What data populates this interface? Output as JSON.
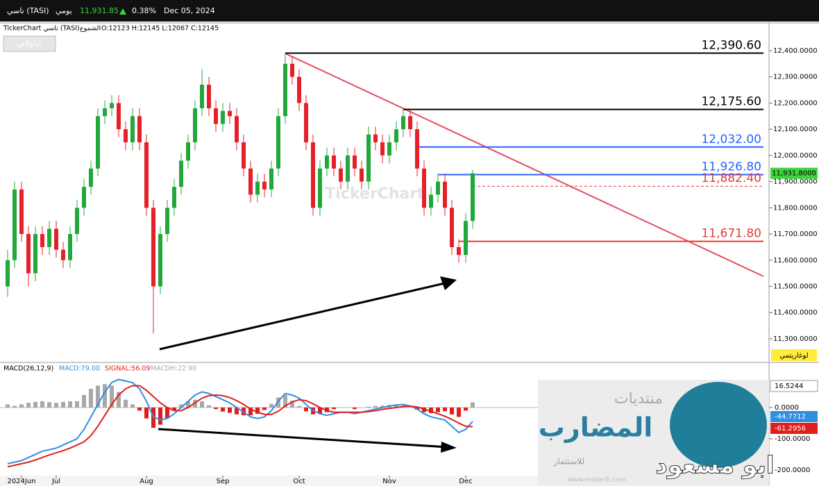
{
  "header": {
    "symbol": "تاسي (TASI)",
    "period": "يومي",
    "price": "11,931.85",
    "change": "0.38%",
    "date": "Dec 05, 2024"
  },
  "info": {
    "source": "TickerChart تاسي (TASI)",
    "style": "الشموع",
    "ohlc": "O:12123 H:12145 L:12067 C:12145"
  },
  "toolbar": {
    "button": "تداولاتي",
    "scale_button": "لوغاريتمي"
  },
  "watermark": "TickerChart",
  "logo": {
    "line1": "منتديات",
    "line2": "المضارب",
    "line3": "للاستثمار",
    "site": "www.modarib.com",
    "author": "ابو مسعود"
  },
  "chart_data": [
    {
      "type": "candlestick",
      "up_color": "#22a83a",
      "down_color": "#e5202a",
      "ylim": [
        11215,
        12506
      ],
      "yticks": [
        {
          "value": 12400,
          "label": "12,400.0000"
        },
        {
          "value": 12300,
          "label": "12,300.0000"
        },
        {
          "value": 12200,
          "label": "12,200.0000"
        },
        {
          "value": 12100,
          "label": "12,100.0000"
        },
        {
          "value": 12000,
          "label": "12,000.0000"
        },
        {
          "value": 11900,
          "label": "11,900.0000"
        },
        {
          "value": 11800,
          "label": "11,800.0000"
        },
        {
          "value": 11700,
          "label": "11,700.0000"
        },
        {
          "value": 11600,
          "label": "11,600.0000"
        },
        {
          "value": 11500,
          "label": "11,500.0000"
        },
        {
          "value": 11400,
          "label": "11,400.0000"
        },
        {
          "value": 11300,
          "label": "11,300.0000"
        }
      ],
      "last_price": {
        "value": 11931.8,
        "label": "11,931.8000",
        "color": "#3cd43c"
      },
      "levels": [
        {
          "value": 12390.6,
          "label": "12,390.60",
          "color": "#000000"
        },
        {
          "value": 12175.6,
          "label": "12,175.60",
          "color": "#000000"
        },
        {
          "value": 12032,
          "label": "12,032.00",
          "color": "#2962ff"
        },
        {
          "value": 11926.8,
          "label": "11,926.80",
          "color": "#2962ff"
        },
        {
          "value": 11882.4,
          "label": "11,882.40",
          "color": "#e53935",
          "dashed": true
        },
        {
          "value": 11671.8,
          "label": "11,671.80",
          "color": "#e53935"
        }
      ],
      "candles": [
        [
          11500,
          11640,
          11460,
          11600
        ],
        [
          11600,
          11900,
          11570,
          11870
        ],
        [
          11870,
          11900,
          11670,
          11700
        ],
        [
          11700,
          11730,
          11500,
          11550
        ],
        [
          11550,
          11730,
          11520,
          11700
        ],
        [
          11700,
          11730,
          11620,
          11650
        ],
        [
          11650,
          11750,
          11620,
          11720
        ],
        [
          11720,
          11750,
          11610,
          11640
        ],
        [
          11640,
          11670,
          11570,
          11600
        ],
        [
          11600,
          11730,
          11570,
          11700
        ],
        [
          11700,
          11830,
          11670,
          11800
        ],
        [
          11800,
          11910,
          11770,
          11880
        ],
        [
          11880,
          11980,
          11850,
          11950
        ],
        [
          11950,
          12180,
          11920,
          12150
        ],
        [
          12150,
          12210,
          12120,
          12180
        ],
        [
          12180,
          12230,
          12150,
          12200
        ],
        [
          12200,
          12230,
          12070,
          12100
        ],
        [
          12100,
          12130,
          12020,
          12050
        ],
        [
          12050,
          12180,
          12020,
          12150
        ],
        [
          12150,
          12180,
          12020,
          12050
        ],
        [
          12050,
          12080,
          11770,
          11800
        ],
        [
          11800,
          11830,
          11320,
          11500
        ],
        [
          11500,
          11730,
          11470,
          11700
        ],
        [
          11700,
          11830,
          11670,
          11800
        ],
        [
          11800,
          11910,
          11770,
          11880
        ],
        [
          11880,
          12010,
          11850,
          11980
        ],
        [
          11980,
          12080,
          11950,
          12050
        ],
        [
          12050,
          12210,
          12020,
          12180
        ],
        [
          12180,
          12330,
          12150,
          12270
        ],
        [
          12270,
          12300,
          12150,
          12180
        ],
        [
          12180,
          12210,
          12090,
          12120
        ],
        [
          12120,
          12200,
          12090,
          12170
        ],
        [
          12170,
          12200,
          12120,
          12150
        ],
        [
          12150,
          12180,
          12020,
          12050
        ],
        [
          12050,
          12080,
          11920,
          11950
        ],
        [
          11950,
          11980,
          11820,
          11850
        ],
        [
          11850,
          11930,
          11820,
          11900
        ],
        [
          11900,
          11930,
          11840,
          11870
        ],
        [
          11870,
          11980,
          11840,
          11950
        ],
        [
          11950,
          12180,
          11920,
          12150
        ],
        [
          12150,
          12390.6,
          12120,
          12350
        ],
        [
          12350,
          12380,
          12270,
          12300
        ],
        [
          12300,
          12330,
          12170,
          12200
        ],
        [
          12200,
          12230,
          12020,
          12050
        ],
        [
          12050,
          12080,
          11770,
          11800
        ],
        [
          11800,
          11980,
          11770,
          11950
        ],
        [
          11950,
          12030,
          11920,
          12000
        ],
        [
          12000,
          12030,
          11920,
          11950
        ],
        [
          11950,
          11980,
          11870,
          11900
        ],
        [
          11900,
          12030,
          11870,
          12000
        ],
        [
          12000,
          12030,
          11920,
          11950
        ],
        [
          11950,
          11980,
          11870,
          11900
        ],
        [
          11900,
          12110,
          11870,
          12080
        ],
        [
          12080,
          12110,
          12020,
          12050
        ],
        [
          12050,
          12080,
          11970,
          12000
        ],
        [
          12000,
          12080,
          11970,
          12050
        ],
        [
          12050,
          12130,
          12020,
          12100
        ],
        [
          12100,
          12175.6,
          12070,
          12150
        ],
        [
          12150,
          12180,
          12070,
          12100
        ],
        [
          12100,
          12130,
          11920,
          11950
        ],
        [
          11950,
          11980,
          11770,
          11800
        ],
        [
          11800,
          11880,
          11770,
          11850
        ],
        [
          11850,
          11930,
          11820,
          11900
        ],
        [
          11900,
          11930,
          11770,
          11800
        ],
        [
          11800,
          11830,
          11620,
          11650
        ],
        [
          11650,
          11680,
          11590,
          11620
        ],
        [
          11620,
          11780,
          11590,
          11750
        ],
        [
          11750,
          11945,
          11720,
          11931.8
        ]
      ]
    },
    {
      "type": "macd",
      "title": "MACD(26,12,9)",
      "ylim": [
        -218,
        140
      ],
      "yticks": [
        {
          "value": 0,
          "label": "0.0000"
        },
        {
          "value": -100,
          "label": "-100.0000"
        },
        {
          "value": -200,
          "label": "-200.0000"
        }
      ],
      "xticks": [
        {
          "value": 2,
          "label": "2024Jun"
        },
        {
          "value": 7,
          "label": "Jul"
        },
        {
          "value": 20,
          "label": "Aug"
        },
        {
          "value": 31,
          "label": "Sep"
        },
        {
          "value": 42,
          "label": "Oct"
        },
        {
          "value": 55,
          "label": "Nov"
        },
        {
          "value": 66,
          "label": "Dec"
        }
      ],
      "series": [
        {
          "name": "MACD:79.00",
          "color": "#2f8fe0",
          "values": [
            -180,
            -175,
            -170,
            -160,
            -150,
            -140,
            -135,
            -130,
            -120,
            -110,
            -100,
            -70,
            -30,
            10,
            50,
            80,
            90,
            85,
            80,
            60,
            20,
            -30,
            -40,
            -35,
            -20,
            0,
            20,
            40,
            50,
            45,
            35,
            25,
            15,
            0,
            -15,
            -30,
            -35,
            -30,
            -10,
            20,
            45,
            40,
            30,
            10,
            -10,
            -20,
            -25,
            -20,
            -15,
            -15,
            -20,
            -15,
            -10,
            -5,
            0,
            5,
            8,
            10,
            5,
            -5,
            -20,
            -30,
            -35,
            -40,
            -60,
            -80,
            -70,
            -44.7712
          ]
        },
        {
          "name": "SIGNAL:56.09",
          "color": "#e01e1e",
          "values": [
            -190,
            -185,
            -180,
            -175,
            -168,
            -160,
            -152,
            -145,
            -138,
            -130,
            -120,
            -110,
            -90,
            -60,
            -25,
            10,
            40,
            60,
            70,
            70,
            55,
            35,
            15,
            0,
            -10,
            -10,
            0,
            15,
            30,
            38,
            40,
            38,
            32,
            22,
            10,
            -5,
            -15,
            -22,
            -22,
            -12,
            5,
            18,
            25,
            22,
            12,
            0,
            -10,
            -15,
            -15,
            -15,
            -15,
            -15,
            -13,
            -10,
            -6,
            -3,
            0,
            3,
            4,
            2,
            -5,
            -12,
            -20,
            -28,
            -38,
            -50,
            -60,
            -61.2956
          ]
        },
        {
          "name": "MACDH:22.90",
          "color": "#a8a8a8",
          "negative_color": "#e01e1e",
          "values": [
            10,
            5,
            10,
            15,
            18,
            20,
            17,
            15,
            18,
            20,
            20,
            40,
            60,
            70,
            75,
            70,
            50,
            25,
            10,
            -10,
            -35,
            -65,
            -55,
            -35,
            -10,
            10,
            20,
            25,
            20,
            7,
            -5,
            -13,
            -17,
            -22,
            -25,
            -25,
            -20,
            -8,
            12,
            32,
            40,
            22,
            5,
            -12,
            -22,
            -20,
            -15,
            -5,
            0,
            0,
            -5,
            0,
            3,
            5,
            6,
            8,
            8,
            7,
            1,
            -7,
            -15,
            -18,
            -15,
            -12,
            -22,
            -30,
            -10,
            16.5244
          ]
        }
      ]
    }
  ]
}
